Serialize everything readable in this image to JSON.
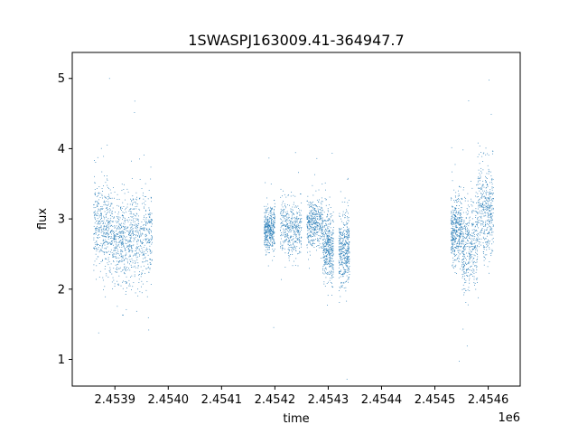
{
  "chart_data": {
    "type": "scatter",
    "title": "1SWASPJ163009.41-364947.7",
    "xlabel": "time",
    "ylabel": "flux",
    "x_offset_label": "1e6",
    "xlim": [
      2.45382,
      2.45466
    ],
    "ylim": [
      0.62,
      5.37
    ],
    "x_ticks": [
      2.4539,
      2.454,
      2.4541,
      2.4542,
      2.4543,
      2.4544,
      2.4545,
      2.4546
    ],
    "x_tick_labels": [
      "2.4539",
      "2.4540",
      "2.4541",
      "2.4542",
      "2.4543",
      "2.4544",
      "2.4545",
      "2.4546"
    ],
    "y_ticks": [
      1,
      2,
      3,
      4,
      5
    ],
    "y_tick_labels": [
      "1",
      "2",
      "3",
      "4",
      "5"
    ],
    "grid": false,
    "marker_color": "#1f77b4",
    "series": [
      {
        "clusters": [
          {
            "x_range": [
              2.45386,
              2.453895
            ],
            "center": 2.9,
            "spread": 0.55
          },
          {
            "x_range": [
              2.453895,
              2.45393
            ],
            "center": 2.65,
            "spread": 0.55
          },
          {
            "x_range": [
              2.45393,
              2.45397
            ],
            "center": 2.75,
            "spread": 0.6
          },
          {
            "x_range": [
              2.45418,
              2.4542
            ],
            "center": 2.85,
            "spread": 0.3
          },
          {
            "x_range": [
              2.45421,
              2.45425
            ],
            "center": 2.85,
            "spread": 0.35
          },
          {
            "x_range": [
              2.45426,
              2.45429
            ],
            "center": 2.95,
            "spread": 0.3
          },
          {
            "x_range": [
              2.45429,
              2.45431
            ],
            "center": 2.6,
            "spread": 0.45
          },
          {
            "x_range": [
              2.45432,
              2.45434
            ],
            "center": 2.55,
            "spread": 0.45
          },
          {
            "x_range": [
              2.45453,
              2.45455
            ],
            "center": 2.85,
            "spread": 0.45
          },
          {
            "x_range": [
              2.45455,
              2.45458
            ],
            "center": 2.65,
            "spread": 0.6
          },
          {
            "x_range": [
              2.45458,
              2.45461
            ],
            "center": 3.1,
            "spread": 0.6
          }
        ]
      }
    ]
  }
}
